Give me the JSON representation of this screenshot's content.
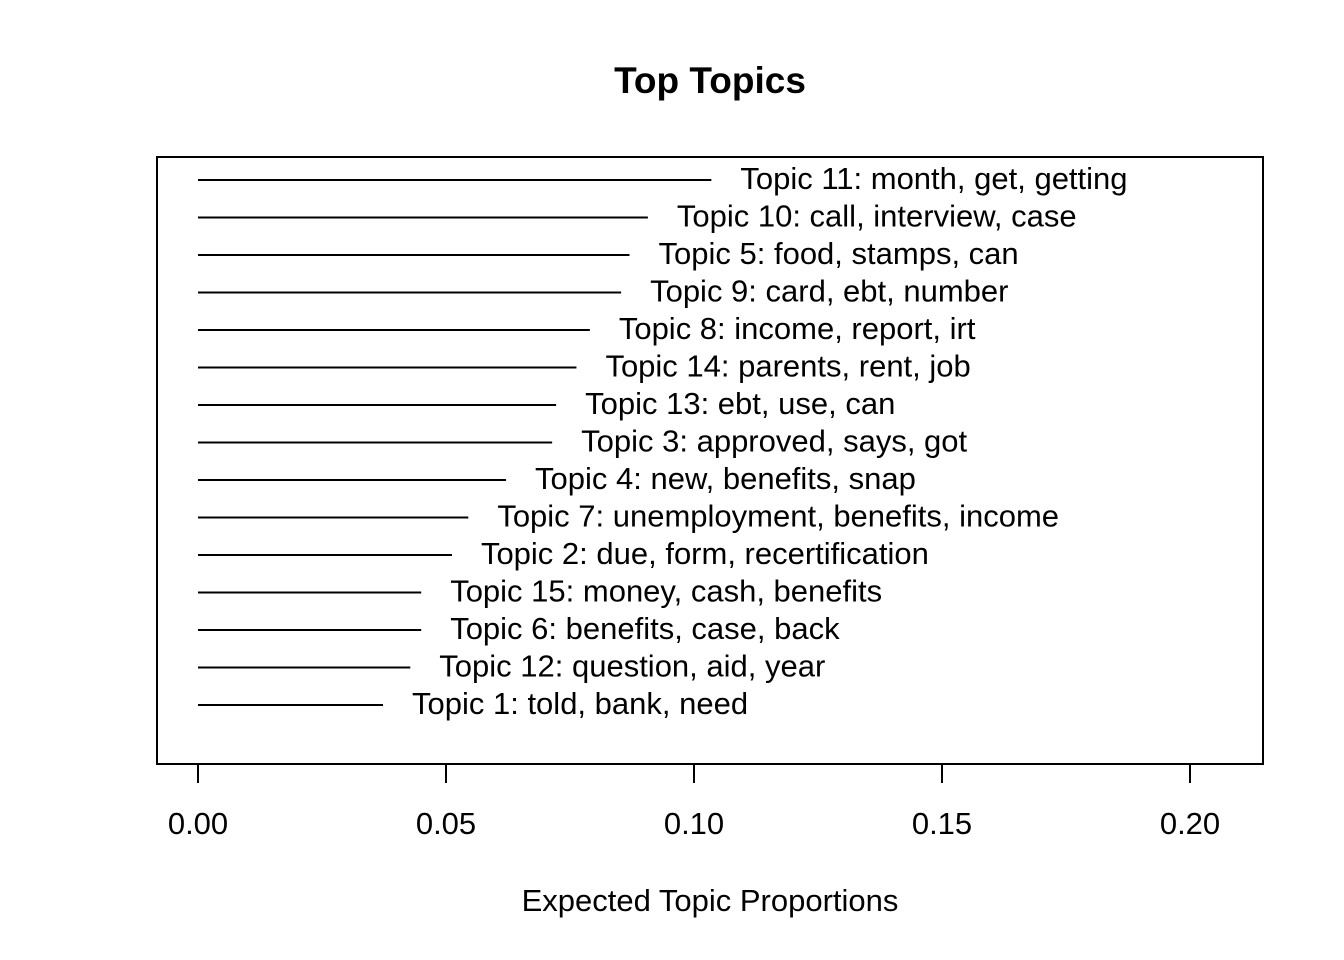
{
  "chart_data": {
    "type": "bar",
    "orientation": "horizontal",
    "title": "Top Topics",
    "xlabel": "Expected Topic Proportions",
    "ylabel": "",
    "xlim": [
      0.0,
      0.215
    ],
    "xticks": [
      0.0,
      0.05,
      0.1,
      0.15,
      0.2
    ],
    "xtick_labels": [
      "0.00",
      "0.05",
      "0.10",
      "0.15",
      "0.20"
    ],
    "grid": false,
    "legend": "none",
    "bar_color": "#000000",
    "bars": [
      {
        "label": "Topic 11: month, get, getting",
        "value": 0.1035
      },
      {
        "label": "Topic 10: call, interview, case",
        "value": 0.0907
      },
      {
        "label": "Topic 5: food, stamps, can",
        "value": 0.087
      },
      {
        "label": "Topic 9: card, ebt, number",
        "value": 0.0853
      },
      {
        "label": "Topic 8: income, report, irt",
        "value": 0.079
      },
      {
        "label": "Topic 14: parents, rent, job",
        "value": 0.0763
      },
      {
        "label": "Topic 13: ebt, use, can",
        "value": 0.0722
      },
      {
        "label": "Topic 3: approved, says, got",
        "value": 0.0714
      },
      {
        "label": "Topic 4: new, benefits, snap",
        "value": 0.0621
      },
      {
        "label": "Topic 7: unemployment, benefits, income",
        "value": 0.0545
      },
      {
        "label": "Topic 2: due, form, recertification",
        "value": 0.0512
      },
      {
        "label": "Topic 15: money, cash, benefits",
        "value": 0.045
      },
      {
        "label": "Topic 6: benefits, case, back",
        "value": 0.045
      },
      {
        "label": "Topic 12: question, aid, year",
        "value": 0.0428
      },
      {
        "label": "Topic 1: told, bank, need",
        "value": 0.0373
      }
    ]
  }
}
